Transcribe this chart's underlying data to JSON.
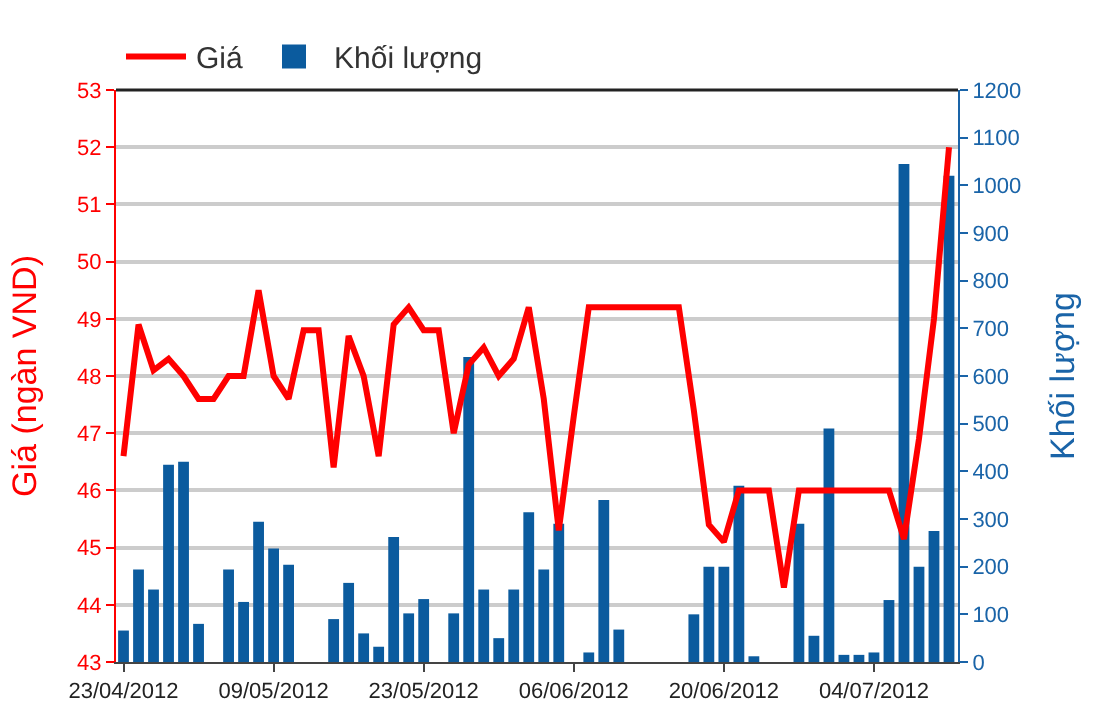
{
  "chart_data": {
    "type": "line",
    "ylabel": "Giá (ngàn VND)",
    "y2label": "Khối lượng",
    "categories": [
      "23/04/2012",
      null,
      null,
      null,
      null,
      null,
      null,
      null,
      null,
      null,
      "09/05/2012",
      null,
      null,
      null,
      null,
      null,
      null,
      null,
      null,
      null,
      "23/05/2012",
      null,
      null,
      null,
      null,
      null,
      null,
      null,
      null,
      null,
      "06/06/2012",
      null,
      null,
      null,
      null,
      null,
      null,
      null,
      null,
      null,
      "20/06/2012",
      null,
      null,
      null,
      null,
      null,
      null,
      null,
      null,
      null,
      "04/07/2012",
      null,
      null,
      null,
      null,
      null
    ],
    "series": [
      {
        "name": "Giá",
        "color": "#ff0000",
        "values": [
          46.6,
          48.9,
          48.1,
          48.3,
          48.0,
          47.6,
          47.6,
          48.0,
          48.0,
          49.5,
          48.0,
          47.6,
          48.8,
          48.8,
          46.4,
          48.7,
          48.0,
          46.6,
          48.9,
          49.2,
          48.8,
          48.8,
          47.0,
          48.2,
          48.5,
          48.0,
          48.3,
          49.2,
          47.6,
          45.3,
          47.3,
          49.2,
          49.2,
          49.2,
          49.2,
          49.2,
          49.2,
          49.2,
          47.4,
          45.4,
          45.1,
          46.0,
          46.0,
          46.0,
          44.3,
          46.0,
          46.0,
          46.0,
          46.0,
          46.0,
          46.0,
          46.0,
          45.15,
          46.9,
          49.0,
          52.0
        ]
      },
      {
        "name": "Khối lượng",
        "type": "bar",
        "axis": "y2",
        "color": "#0b5b9e",
        "values": [
          66,
          194,
          152,
          414,
          420,
          80,
          0,
          194,
          126,
          294,
          238,
          204,
          0,
          0,
          90,
          166,
          60,
          32,
          262,
          102,
          132,
          0,
          102,
          640,
          152,
          50,
          152,
          314,
          194,
          290,
          0,
          20,
          340,
          68,
          0,
          0,
          0,
          0,
          100,
          200,
          200,
          370,
          12,
          0,
          0,
          290,
          55,
          490,
          15,
          15,
          20,
          130,
          1045,
          200,
          275,
          1020
        ]
      }
    ],
    "ylim": [
      43,
      53
    ],
    "yticks": [
      43,
      44,
      45,
      46,
      47,
      48,
      49,
      50,
      51,
      52,
      53
    ],
    "y2lim": [
      0,
      1200
    ],
    "y2ticks": [
      0,
      100,
      200,
      300,
      400,
      500,
      600,
      700,
      800,
      900,
      1000,
      1100,
      1200
    ],
    "grid": "y",
    "legend": "top left",
    "marker": "none",
    "line_style": "solid"
  }
}
